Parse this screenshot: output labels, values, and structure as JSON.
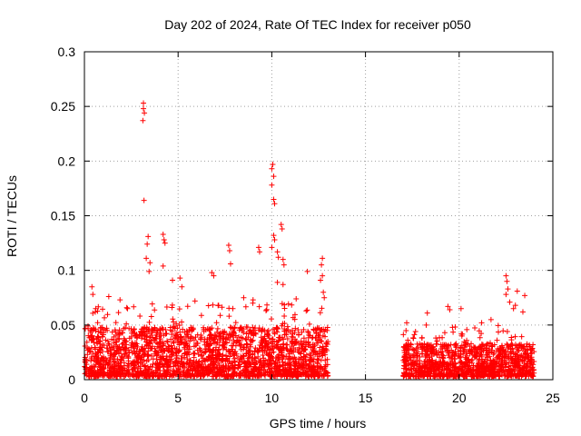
{
  "chart_data": {
    "type": "scatter",
    "title": "Day 202 of 2024, Rate Of TEC Index for receiver p050",
    "xlabel": "GPS time / hours",
    "ylabel": "ROTI / TECUs",
    "xlim": [
      0,
      25
    ],
    "ylim": [
      0,
      0.3
    ],
    "x_ticks": [
      0,
      5,
      10,
      15,
      20,
      25
    ],
    "x_tick_labels": [
      "0",
      "5",
      "10",
      "15",
      "20",
      "25"
    ],
    "y_ticks": [
      0,
      0.05,
      0.1,
      0.15,
      0.2,
      0.25,
      0.3
    ],
    "y_tick_labels": [
      "0",
      "0.05",
      "0.1",
      "0.15",
      "0.2",
      "0.25",
      "0.3"
    ],
    "grid": true,
    "marker": "plus",
    "color": "#ff0000",
    "data_gap_hours": [
      13.0,
      17.0
    ],
    "series": [
      {
        "name": "ROTI",
        "peaks": [
          {
            "x": 0.4,
            "y": 0.085
          },
          {
            "x": 0.45,
            "y": 0.078
          },
          {
            "x": 1.3,
            "y": 0.076
          },
          {
            "x": 1.9,
            "y": 0.073
          },
          {
            "x": 2.3,
            "y": 0.065
          },
          {
            "x": 3.15,
            "y": 0.253
          },
          {
            "x": 3.15,
            "y": 0.248
          },
          {
            "x": 3.2,
            "y": 0.244
          },
          {
            "x": 3.12,
            "y": 0.237
          },
          {
            "x": 3.18,
            "y": 0.164
          },
          {
            "x": 3.4,
            "y": 0.131
          },
          {
            "x": 3.35,
            "y": 0.124
          },
          {
            "x": 3.3,
            "y": 0.111
          },
          {
            "x": 3.5,
            "y": 0.107
          },
          {
            "x": 3.45,
            "y": 0.099
          },
          {
            "x": 4.2,
            "y": 0.133
          },
          {
            "x": 4.25,
            "y": 0.128
          },
          {
            "x": 4.3,
            "y": 0.125
          },
          {
            "x": 4.2,
            "y": 0.104
          },
          {
            "x": 4.7,
            "y": 0.091
          },
          {
            "x": 5.1,
            "y": 0.093
          },
          {
            "x": 5.2,
            "y": 0.085
          },
          {
            "x": 5.9,
            "y": 0.072
          },
          {
            "x": 6.8,
            "y": 0.098
          },
          {
            "x": 6.9,
            "y": 0.095
          },
          {
            "x": 7.7,
            "y": 0.123
          },
          {
            "x": 7.75,
            "y": 0.118
          },
          {
            "x": 7.8,
            "y": 0.106
          },
          {
            "x": 8.5,
            "y": 0.075
          },
          {
            "x": 9.3,
            "y": 0.121
          },
          {
            "x": 9.35,
            "y": 0.117
          },
          {
            "x": 9.0,
            "y": 0.073
          },
          {
            "x": 10.05,
            "y": 0.197
          },
          {
            "x": 10.0,
            "y": 0.193
          },
          {
            "x": 10.1,
            "y": 0.186
          },
          {
            "x": 10.0,
            "y": 0.178
          },
          {
            "x": 10.1,
            "y": 0.165
          },
          {
            "x": 10.15,
            "y": 0.161
          },
          {
            "x": 10.1,
            "y": 0.132
          },
          {
            "x": 10.15,
            "y": 0.128
          },
          {
            "x": 10.0,
            "y": 0.121
          },
          {
            "x": 10.3,
            "y": 0.117
          },
          {
            "x": 10.35,
            "y": 0.112
          },
          {
            "x": 10.5,
            "y": 0.142
          },
          {
            "x": 10.55,
            "y": 0.138
          },
          {
            "x": 10.6,
            "y": 0.11
          },
          {
            "x": 10.65,
            "y": 0.105
          },
          {
            "x": 10.6,
            "y": 0.087
          },
          {
            "x": 10.3,
            "y": 0.089
          },
          {
            "x": 11.3,
            "y": 0.074
          },
          {
            "x": 11.9,
            "y": 0.099
          },
          {
            "x": 12.7,
            "y": 0.111
          },
          {
            "x": 12.65,
            "y": 0.105
          },
          {
            "x": 12.7,
            "y": 0.095
          },
          {
            "x": 12.6,
            "y": 0.091
          },
          {
            "x": 12.75,
            "y": 0.08
          },
          {
            "x": 12.8,
            "y": 0.075
          },
          {
            "x": 17.2,
            "y": 0.052
          },
          {
            "x": 18.3,
            "y": 0.061
          },
          {
            "x": 19.4,
            "y": 0.067
          },
          {
            "x": 19.5,
            "y": 0.064
          },
          {
            "x": 20.1,
            "y": 0.065
          },
          {
            "x": 21.2,
            "y": 0.052
          },
          {
            "x": 21.7,
            "y": 0.055
          },
          {
            "x": 22.5,
            "y": 0.095
          },
          {
            "x": 22.55,
            "y": 0.09
          },
          {
            "x": 22.6,
            "y": 0.083
          },
          {
            "x": 22.5,
            "y": 0.078
          },
          {
            "x": 22.7,
            "y": 0.071
          },
          {
            "x": 22.9,
            "y": 0.065
          },
          {
            "x": 23.1,
            "y": 0.081
          },
          {
            "x": 23.0,
            "y": 0.068
          },
          {
            "x": 23.5,
            "y": 0.077
          },
          {
            "x": 23.4,
            "y": 0.062
          }
        ],
        "background_bands": [
          {
            "x_from": 0.0,
            "x_to": 13.0,
            "y_typical_max": 0.045,
            "y_max": 0.07
          },
          {
            "x_from": 17.0,
            "x_to": 24.0,
            "y_typical_max": 0.03,
            "y_max": 0.05
          }
        ]
      }
    ]
  }
}
